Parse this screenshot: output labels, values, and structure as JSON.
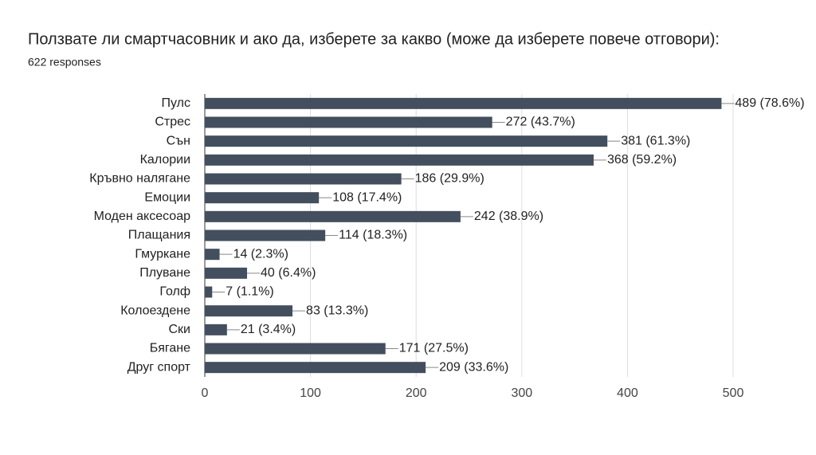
{
  "chart_data": {
    "type": "hbar",
    "title": "Ползвате ли смартчасовник и ако да, изберете за какво (може да изберете повече отговори):",
    "subtitle": "622 responses",
    "categories": [
      "Пулс",
      "Стрес",
      "Сън",
      "Калории",
      "Кръвно налягане",
      "Емоции",
      "Моден аксесоар",
      "Плащания",
      "Гмуркане",
      "Плуване",
      "Голф",
      "Колоездене",
      "Ски",
      "Бягане",
      "Друг спорт"
    ],
    "values": [
      489,
      272,
      381,
      368,
      186,
      108,
      242,
      114,
      14,
      40,
      7,
      83,
      21,
      171,
      209
    ],
    "value_labels": [
      "489 (78.6%)",
      "272 (43.7%)",
      "381 (61.3%)",
      "368 (59.2%)",
      "186 (29.9%)",
      "108 (17.4%)",
      "242 (38.9%)",
      "114 (18.3%)",
      "14 (2.3%)",
      "40 (6.4%)",
      "7 (1.1%)",
      "83 (13.3%)",
      "21 (3.4%)",
      "171 (27.5%)",
      "209 (33.6%)"
    ],
    "color": "#434f5e",
    "xlim": [
      0,
      500
    ],
    "xticks": [
      0,
      100,
      200,
      300,
      400,
      500
    ],
    "grid": true
  }
}
